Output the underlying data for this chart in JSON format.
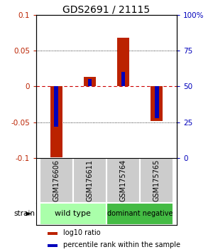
{
  "title": "GDS2691 / 21115",
  "samples": [
    "GSM176606",
    "GSM176611",
    "GSM175764",
    "GSM175765"
  ],
  "log10_ratio": [
    -0.105,
    0.013,
    0.068,
    -0.048
  ],
  "percentile_rank_raw": [
    22,
    55,
    60,
    28
  ],
  "ylim_left": [
    -0.1,
    0.1
  ],
  "yticks_left": [
    -0.1,
    -0.05,
    0.0,
    0.05,
    0.1
  ],
  "yticks_right": [
    0,
    25,
    50,
    75,
    100
  ],
  "groups": [
    {
      "label": "wild type",
      "samples": [
        0,
        1
      ],
      "color": "#aaffaa"
    },
    {
      "label": "dominant negative",
      "samples": [
        2,
        3
      ],
      "color": "#44bb44"
    }
  ],
  "red_color": "#bb2200",
  "blue_color": "#0000bb",
  "grid_color": "#888888",
  "zero_line_color": "#cc0000",
  "background_color": "#ffffff",
  "label_box_color": "#cccccc",
  "legend_red_label": "log10 ratio",
  "legend_blue_label": "percentile rank within the sample",
  "strain_label": "strain",
  "title_fontsize": 10,
  "tick_fontsize": 7.5,
  "sample_fontsize": 7,
  "group_fontsize": 8
}
